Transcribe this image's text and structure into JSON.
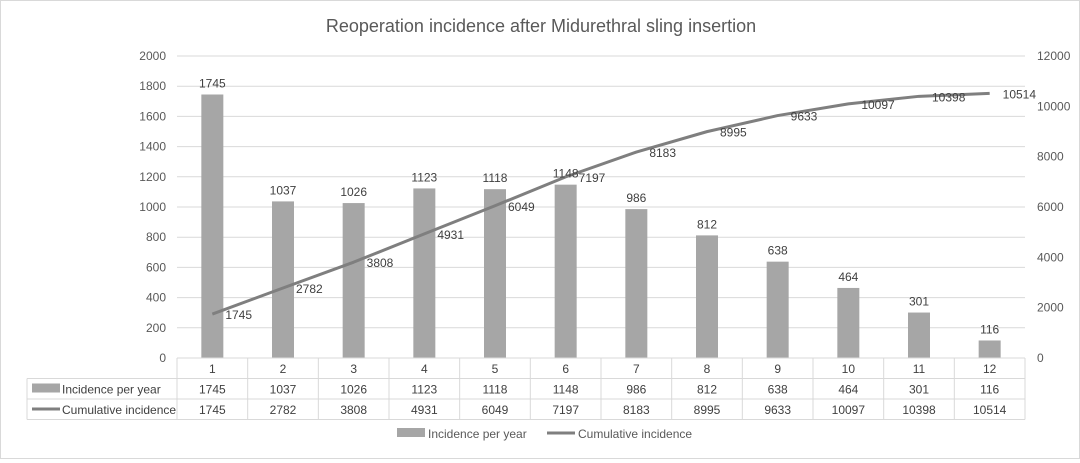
{
  "chart_data": {
    "type": "bar+line",
    "title": "Reoperation incidence after Midurethral sling insertion",
    "categories": [
      "1",
      "2",
      "3",
      "4",
      "5",
      "6",
      "7",
      "8",
      "9",
      "10",
      "11",
      "12"
    ],
    "series": [
      {
        "name": "Incidence per year",
        "type": "bar",
        "axis": "left",
        "color": "#a6a6a6",
        "values": [
          1745,
          1037,
          1026,
          1123,
          1118,
          1148,
          986,
          812,
          638,
          464,
          301,
          116
        ]
      },
      {
        "name": "Cumulative incidence",
        "type": "line",
        "axis": "right",
        "color": "#7f7f7f",
        "values": [
          1745,
          2782,
          3808,
          4931,
          6049,
          7197,
          8183,
          8995,
          9633,
          10097,
          10398,
          10514
        ]
      }
    ],
    "y_left": {
      "range": [
        0,
        2000
      ],
      "ticks": [
        0,
        200,
        400,
        600,
        800,
        1000,
        1200,
        1400,
        1600,
        1800,
        2000
      ]
    },
    "y_right": {
      "range": [
        0,
        12000
      ],
      "ticks": [
        0,
        2000,
        4000,
        6000,
        8000,
        10000,
        12000
      ]
    },
    "grid": true,
    "data_table": true,
    "legend_position": "bottom"
  }
}
